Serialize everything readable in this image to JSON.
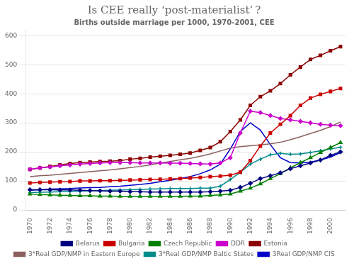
{
  "chart_data": {
    "type": "line",
    "title": "Is CEE really ‘post-materialist’ ?",
    "subtitle": "Births outside marriage per 1000, 1970-2001, CEE",
    "x": [
      1970,
      1971,
      1972,
      1973,
      1974,
      1975,
      1976,
      1977,
      1978,
      1979,
      1980,
      1981,
      1982,
      1983,
      1984,
      1985,
      1986,
      1987,
      1988,
      1989,
      1990,
      1991,
      1992,
      1993,
      1994,
      1995,
      1996,
      1997,
      1998,
      1999,
      2000,
      2001
    ],
    "xlim": [
      1969.5,
      2001.5
    ],
    "xticks": [
      1970,
      1972,
      1974,
      1976,
      1978,
      1980,
      1982,
      1984,
      1986,
      1988,
      1990,
      1992,
      1994,
      1996,
      1998,
      2000
    ],
    "ylim": [
      0,
      620
    ],
    "yticks": [
      0,
      100,
      200,
      300,
      400,
      500,
      600
    ],
    "grid": "y",
    "legend": "bottom",
    "series": [
      {
        "name": "Belarus",
        "color": "#000080",
        "marker": "diamond",
        "values": [
          70,
          70,
          70,
          69,
          69,
          68,
          67,
          66,
          65,
          65,
          63,
          63,
          62,
          62,
          62,
          62,
          62,
          62,
          63,
          65,
          68,
          78,
          92,
          108,
          118,
          128,
          142,
          152,
          162,
          172,
          188,
          200
        ]
      },
      {
        "name": "Bulgaria",
        "color": "#CC0000",
        "marker": "square",
        "values": [
          93,
          95,
          96,
          97,
          98,
          100,
          100,
          101,
          101,
          102,
          103,
          104,
          105,
          106,
          107,
          108,
          110,
          112,
          115,
          117,
          120,
          130,
          170,
          220,
          265,
          295,
          325,
          360,
          385,
          398,
          408,
          418
        ]
      },
      {
        "name": "Czech Republic",
        "color": "#008000",
        "marker": "triangle",
        "values": [
          55,
          53,
          52,
          51,
          50,
          49,
          49,
          48,
          48,
          47,
          47,
          47,
          47,
          47,
          47,
          47,
          48,
          48,
          50,
          52,
          55,
          65,
          75,
          90,
          108,
          125,
          145,
          163,
          180,
          198,
          215,
          232
        ]
      },
      {
        "name": "DDR",
        "color": "#CC00CC",
        "marker": "diamond",
        "values": [
          140,
          145,
          148,
          152,
          155,
          158,
          160,
          162,
          163,
          163,
          163,
          162,
          162,
          162,
          161,
          161,
          160,
          159,
          158,
          162,
          180,
          265,
          340,
          335,
          325,
          315,
          310,
          305,
          300,
          295,
          292,
          290
        ]
      },
      {
        "name": "Estonia",
        "color": "#8B0000",
        "marker": "square",
        "values": [
          140,
          145,
          150,
          155,
          160,
          163,
          165,
          167,
          168,
          170,
          175,
          178,
          182,
          185,
          188,
          192,
          196,
          205,
          215,
          235,
          270,
          310,
          360,
          390,
          410,
          435,
          465,
          492,
          518,
          532,
          548,
          562
        ]
      },
      {
        "name": "3*Real GDP/NMP in Eastern Europe",
        "color": "#8B6060",
        "marker": "none",
        "values": [
          115,
          118,
          120,
          123,
          126,
          129,
          132,
          135,
          138,
          142,
          146,
          150,
          155,
          162,
          167,
          173,
          178,
          185,
          193,
          203,
          213,
          218,
          221,
          224,
          228,
          233,
          242,
          252,
          263,
          274,
          287,
          303
        ]
      },
      {
        "name": "3*Real GDP/NMP Baltic States",
        "color": "#008B8B",
        "marker": "plus",
        "values": [
          60,
          61,
          62,
          63,
          64,
          65,
          66,
          67,
          68,
          69,
          70,
          71,
          72,
          73,
          74,
          74,
          74,
          75,
          75,
          82,
          105,
          130,
          158,
          175,
          190,
          195,
          192,
          193,
          198,
          204,
          210,
          216
        ]
      },
      {
        "name": "3Real GDP/NMP CIS",
        "color": "#0000CC",
        "marker": "none",
        "values": [
          68,
          70,
          72,
          73,
          74,
          76,
          77,
          78,
          80,
          82,
          85,
          88,
          92,
          97,
          102,
          108,
          115,
          125,
          138,
          158,
          210,
          270,
          300,
          275,
          225,
          180,
          163,
          162,
          165,
          172,
          182,
          198
        ]
      }
    ]
  }
}
